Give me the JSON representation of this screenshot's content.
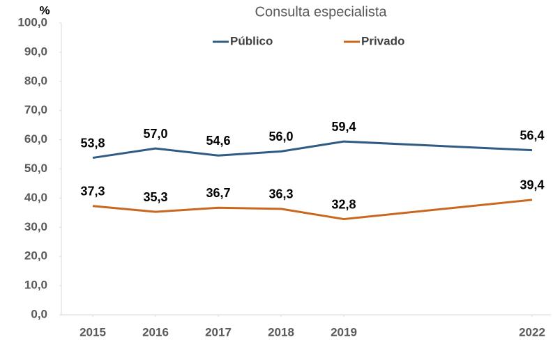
{
  "chart_data": {
    "type": "line",
    "title": "Consulta especialista",
    "y_label": "%",
    "x": [
      2015,
      2016,
      2017,
      2018,
      2019,
      2022
    ],
    "xlim": [
      2014.5,
      2022.5
    ],
    "xticks": [
      2015,
      2016,
      2017,
      2018,
      2019,
      2022
    ],
    "ylim": [
      0,
      100
    ],
    "yticks": [
      {
        "value": 0,
        "label": "0,0"
      },
      {
        "value": 10,
        "label": "10,0"
      },
      {
        "value": 20,
        "label": "20,0"
      },
      {
        "value": 30,
        "label": "30,0"
      },
      {
        "value": 40,
        "label": "40,0"
      },
      {
        "value": 50,
        "label": "50,0"
      },
      {
        "value": 60,
        "label": "60,0"
      },
      {
        "value": 70,
        "label": "70,0"
      },
      {
        "value": 80,
        "label": "80,0"
      },
      {
        "value": 90,
        "label": "90,0"
      },
      {
        "value": 100,
        "label": "100,0"
      }
    ],
    "grid": false,
    "legend": "top",
    "series": [
      {
        "name": "Público",
        "color": "#2f5b85",
        "values": [
          53.8,
          57.0,
          54.6,
          56.0,
          59.4,
          56.4
        ],
        "value_labels": [
          "53,8",
          "57,0",
          "54,6",
          "56,0",
          "59,4",
          "56,4"
        ]
      },
      {
        "name": "Privado",
        "color": "#c9671f",
        "values": [
          37.3,
          35.3,
          36.7,
          36.3,
          32.8,
          39.4
        ],
        "value_labels": [
          "37,3",
          "35,3",
          "36,7",
          "36,3",
          "32,8",
          "39,4"
        ]
      }
    ]
  }
}
